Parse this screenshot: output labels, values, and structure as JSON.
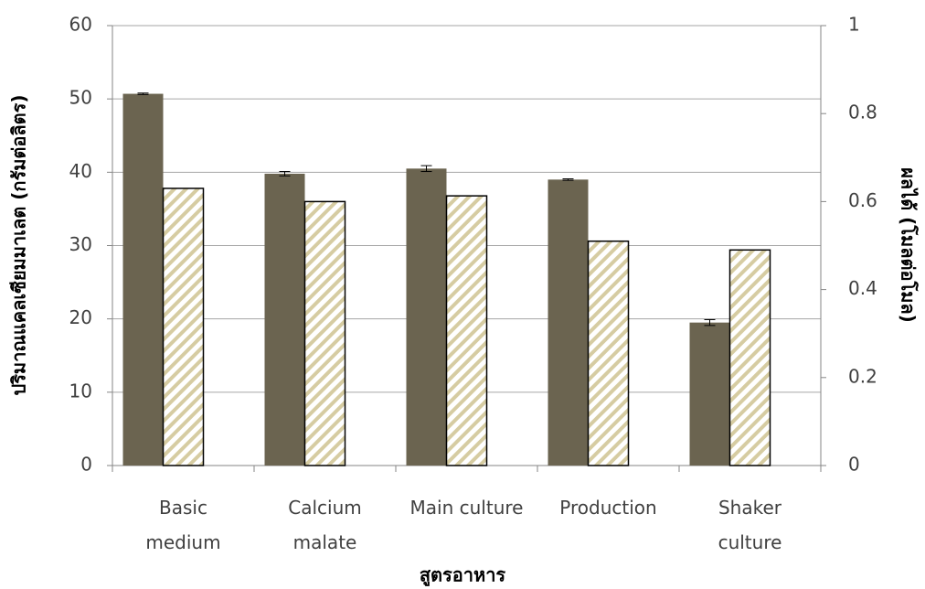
{
  "chart_data": {
    "type": "bar",
    "x_label": "สูตรอาหาร",
    "y_label": "ปริมาณแคลเซียมมาเลต (กรัมต่อลิตร)",
    "y2_label": "ผลได้ (โมลต่อโมล)",
    "categories": [
      "Basic\nmedium",
      "Calcium\nmalate",
      "Main culture",
      "Production",
      "Shaker\nculture"
    ],
    "series": [
      {
        "color": "#6b6450",
        "values": [
          50.7,
          39.8,
          40.5,
          39.0,
          19.5
        ],
        "errors": [
          0.1,
          0.3,
          0.4,
          0.1,
          0.4
        ]
      },
      {
        "color": "#d6cca2",
        "pattern": "hatch",
        "axis": "y2",
        "values": [
          0.63,
          0.6,
          0.613,
          0.51,
          0.49
        ]
      }
    ],
    "ylim": [
      0,
      60
    ],
    "yticks": [
      0,
      10,
      20,
      30,
      40,
      50,
      60
    ],
    "y2lim": [
      0,
      1
    ],
    "y2ticks": [
      0,
      0.2,
      0.4,
      0.6,
      0.8,
      1
    ],
    "grid": true
  }
}
